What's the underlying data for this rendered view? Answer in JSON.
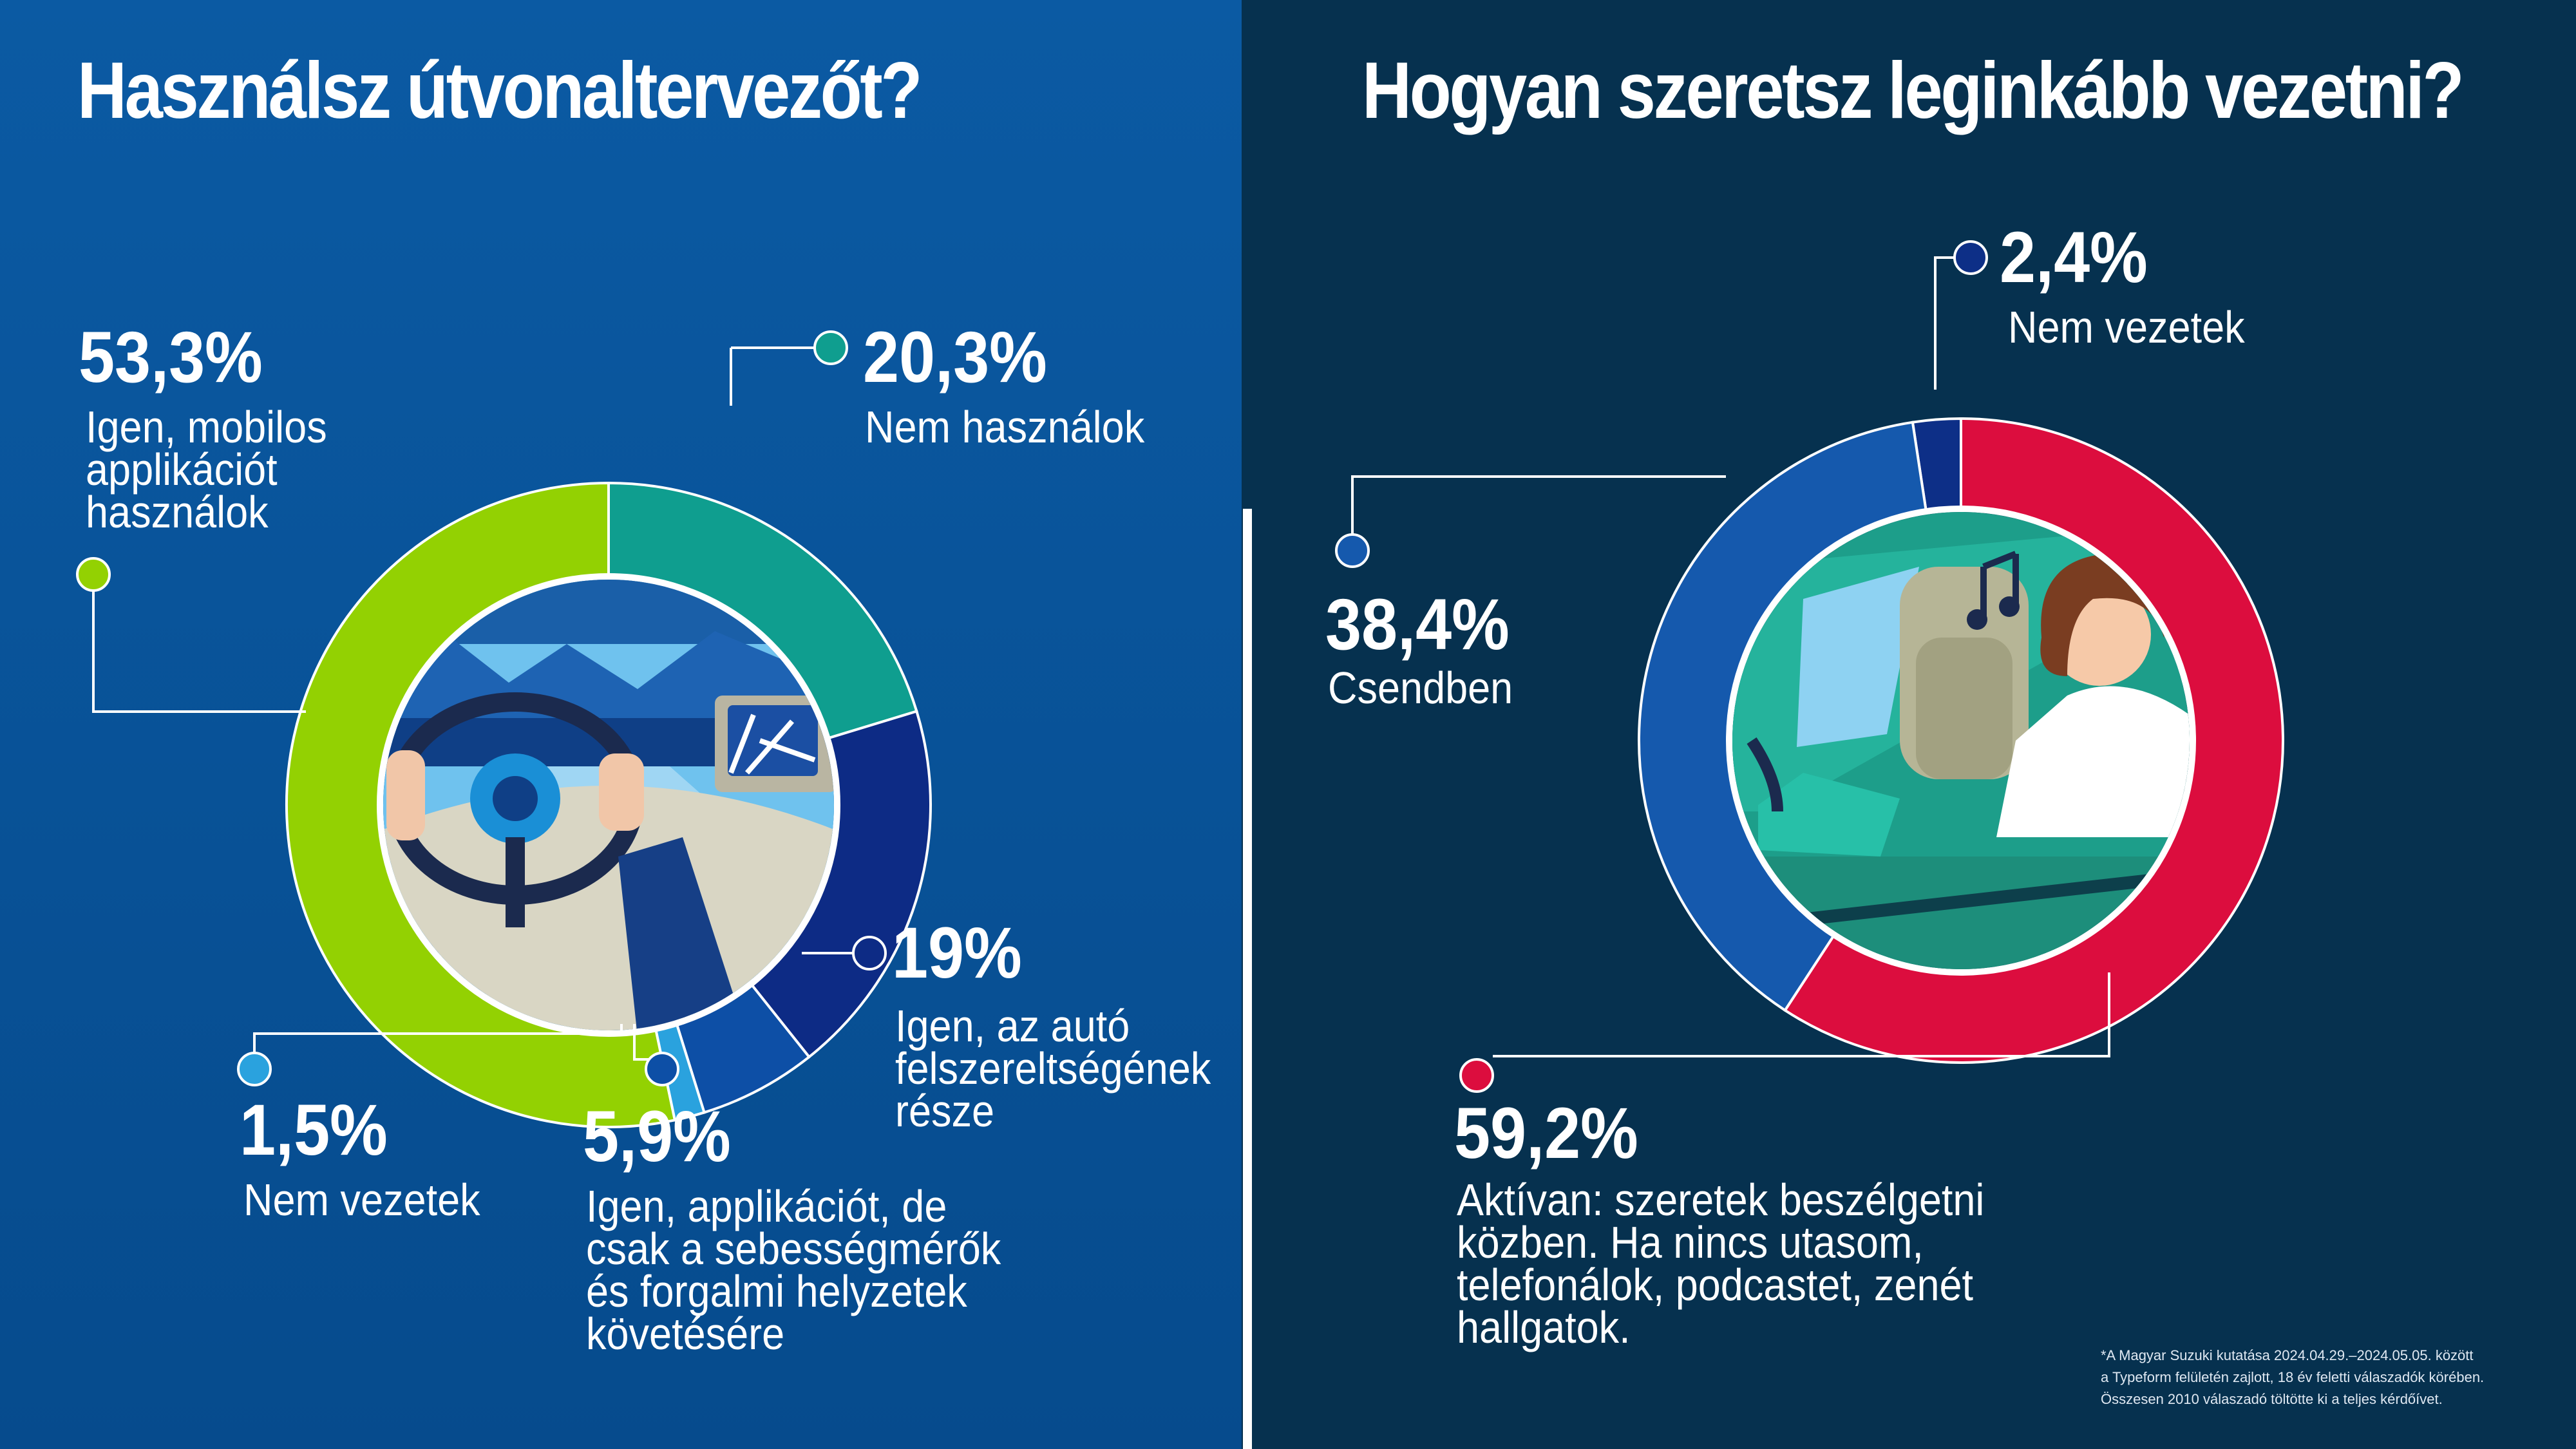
{
  "chart_data": [
    {
      "type": "pie",
      "title": "Használsz útvonaltervezőt?",
      "unit": "%",
      "slices": [
        {
          "key": "mobile",
          "label": "Igen, mobilos\napplikációt\nhasználok",
          "value": 53.3,
          "display": "53,3%",
          "color": "#93d102"
        },
        {
          "key": "none",
          "label": "Nem használok",
          "value": 20.3,
          "display": "20,3%",
          "color": "#0f9e8f"
        },
        {
          "key": "car",
          "label": "Igen, az autó\nfelszereltségének\nrésze",
          "value": 19,
          "display": "19%",
          "color": "#0d2b85"
        },
        {
          "key": "speed",
          "label": "Igen, applikációt, de\ncsak a sebességmérők\nés forgalmi helyzetek\nkövetésére",
          "value": 5.9,
          "display": "5,9%",
          "color": "#0d4fa6"
        },
        {
          "key": "nodrive",
          "label": "Nem vezetek",
          "value": 1.5,
          "display": "1,5%",
          "color": "#2aa2de"
        }
      ]
    },
    {
      "type": "pie",
      "title": "Hogyan szeretsz leginkább vezetni?",
      "unit": "%",
      "slices": [
        {
          "key": "active",
          "label": "Aktívan: szeretek beszélgetni\nközben. Ha nincs utasom,\ntelefonálok, podcastet, zenét\nhallgatok.",
          "value": 59.2,
          "display": "59,2%",
          "color": "#dc0d3e"
        },
        {
          "key": "quiet",
          "label": "Csendben",
          "value": 38.4,
          "display": "38,4%",
          "color": "#1559ad"
        },
        {
          "key": "nodrive",
          "label": "Nem vezetek",
          "value": 2.4,
          "display": "2,4%",
          "color": "#0d2f87"
        }
      ]
    }
  ],
  "footnote": "*A Magyar Suzuki kutatása 2024.04.29.–2024.05.05. között\n  a Typeform felületén zajlott, 18 év feletti válaszadók körében.\n  Összesen 2010 válaszadó töltötte ki a teljes kérdőívet."
}
